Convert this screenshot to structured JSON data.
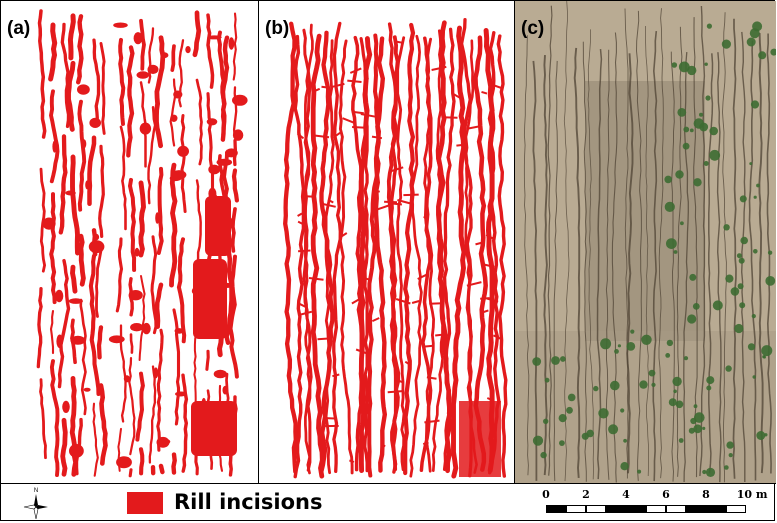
{
  "figure": {
    "panels": [
      {
        "label": "(a)"
      },
      {
        "label": "(b)"
      },
      {
        "label": "(c)"
      }
    ],
    "colors": {
      "rill": "#e31a1c",
      "soil": "#b9ab93",
      "vegetation": "#3d6b32",
      "rill_shadow": "#4f4334"
    },
    "legend": {
      "swatch_color": "#e31a1c",
      "label": "Rill incisions",
      "north_arrow_icon": "north-arrow-icon",
      "north_label": "N"
    },
    "scale_bar": {
      "ticks": [
        "0",
        "2",
        "4",
        "6",
        "8",
        "10 m"
      ]
    }
  }
}
